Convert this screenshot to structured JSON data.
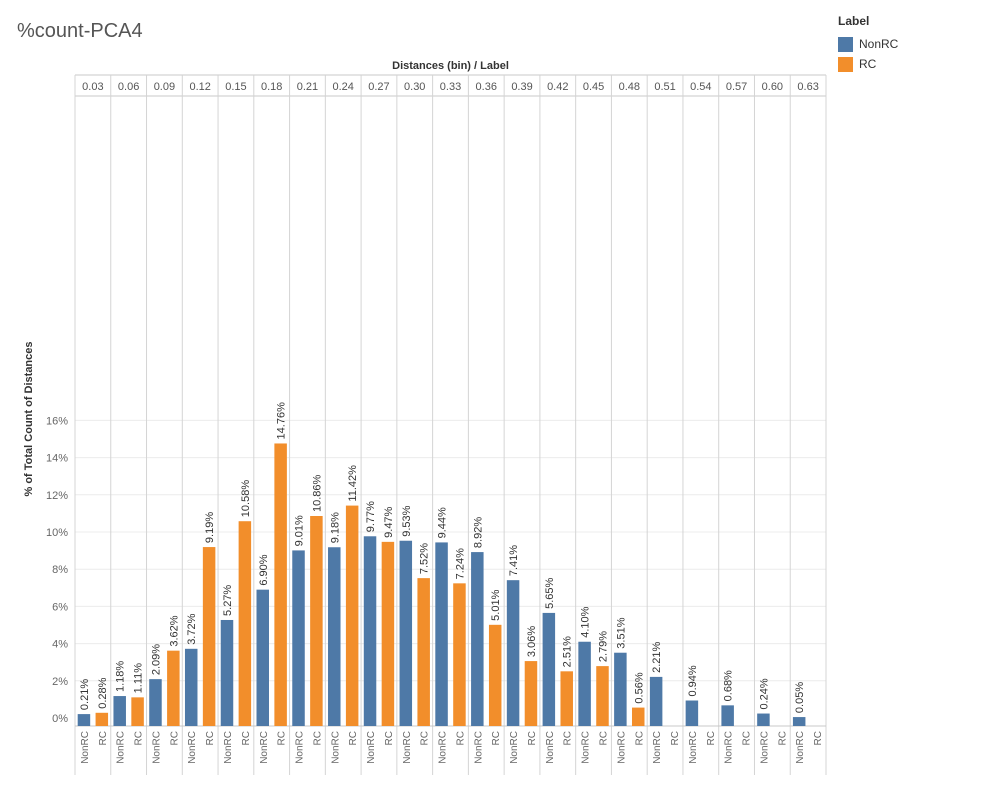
{
  "chart_data": {
    "type": "bar",
    "title": "%count-PCA4",
    "xlabel": "Distances (bin) / Label",
    "ylabel": "% of Total Count of Distances",
    "ylim": [
      0,
      16.5
    ],
    "yticks": [
      0,
      2,
      4,
      6,
      8,
      10,
      12,
      14,
      16
    ],
    "ytick_labels": [
      "0%",
      "2%",
      "4%",
      "6%",
      "8%",
      "10%",
      "12%",
      "14%",
      "16%"
    ],
    "grid": true,
    "categories": [
      "0.03",
      "0.06",
      "0.09",
      "0.12",
      "0.15",
      "0.18",
      "0.21",
      "0.24",
      "0.27",
      "0.30",
      "0.33",
      "0.36",
      "0.39",
      "0.42",
      "0.45",
      "0.48",
      "0.51",
      "0.54",
      "0.57",
      "0.60",
      "0.63"
    ],
    "sub_labels": [
      "NonRC",
      "RC"
    ],
    "series": [
      {
        "name": "NonRC",
        "color": "#4e79a7",
        "values": [
          0.21,
          1.18,
          2.09,
          3.72,
          5.27,
          6.9,
          9.01,
          9.18,
          9.77,
          9.53,
          9.44,
          8.92,
          7.41,
          5.65,
          4.1,
          3.51,
          2.21,
          0.94,
          0.68,
          0.24,
          0.05
        ],
        "labels": [
          "0.21%",
          "1.18%",
          "2.09%",
          "3.72%",
          "5.27%",
          "6.90%",
          "9.01%",
          "9.18%",
          "9.77%",
          "9.53%",
          "9.44%",
          "8.92%",
          "7.41%",
          "5.65%",
          "4.10%",
          "3.51%",
          "2.21%",
          "0.94%",
          "0.68%",
          "0.24%",
          "0.05%"
        ]
      },
      {
        "name": "RC",
        "color": "#f28e2b",
        "values": [
          0.28,
          1.11,
          3.62,
          9.19,
          10.58,
          14.76,
          10.86,
          11.42,
          9.47,
          7.52,
          7.24,
          5.01,
          3.06,
          2.51,
          2.79,
          0.56,
          null,
          null,
          null,
          null,
          null
        ],
        "labels": [
          "0.28%",
          "1.11%",
          "3.62%",
          "9.19%",
          "10.58%",
          "14.76%",
          "10.86%",
          "11.42%",
          "9.47%",
          "7.52%",
          "7.24%",
          "5.01%",
          "3.06%",
          "2.51%",
          "2.79%",
          "0.56%",
          "",
          "",
          "",
          "",
          ""
        ]
      }
    ],
    "legend": {
      "title": "Label",
      "position": "top-right"
    }
  }
}
